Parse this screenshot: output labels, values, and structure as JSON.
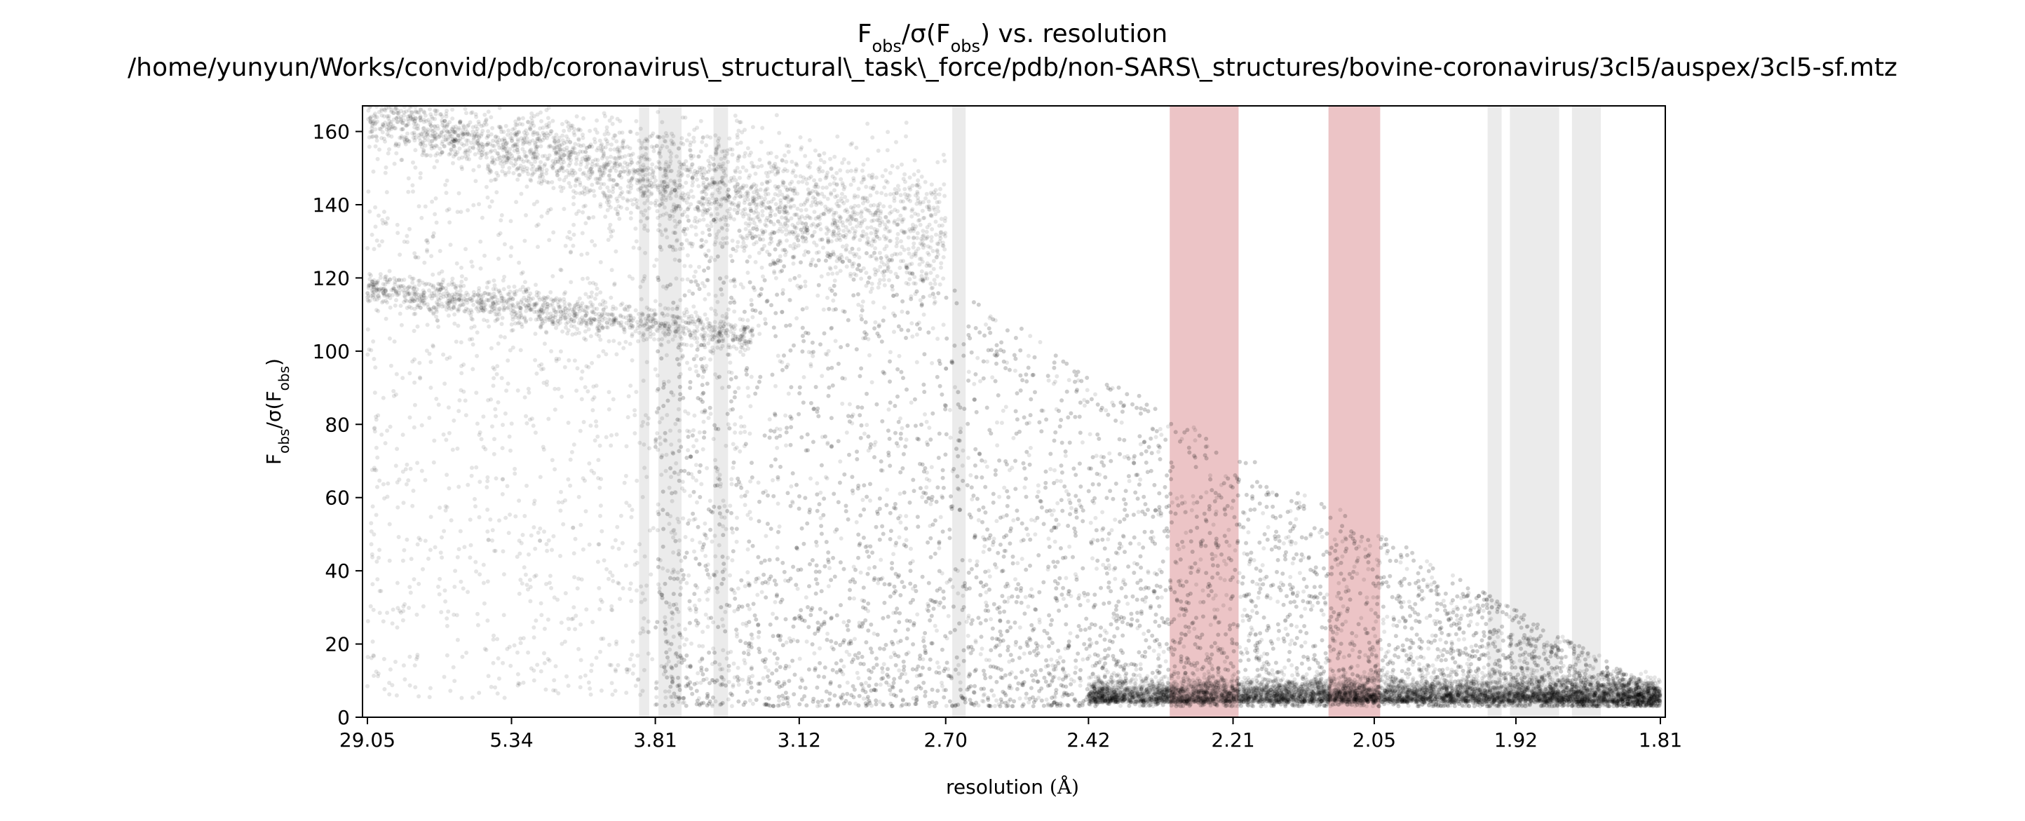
{
  "chart_data": {
    "type": "scatter",
    "title": {
      "line1": {
        "main": "F",
        "main_sub": "obs",
        "mid": "/σ(F",
        "mid_sub": "obs",
        "end": ") vs. resolution"
      },
      "line2": "/home/yunyun/Works/convid/pdb/coronavirus\\_structural\\_task\\_force/pdb/non-SARS\\_structures/bovine-coronavirus/3cl5/auspex/3cl5-sf.mtz"
    },
    "xlabel": {
      "text": "resolution ",
      "unit": "(Å)"
    },
    "ylabel": {
      "main": "F",
      "main_sub": "obs",
      "mid": "/σ(F",
      "mid_sub": "obs",
      "end": ")"
    },
    "x_scale": "inverse-square resolution (1/d²)",
    "x_ticks": [
      "29.05",
      "5.34",
      "3.81",
      "3.12",
      "2.70",
      "2.42",
      "2.21",
      "2.05",
      "1.92",
      "1.81"
    ],
    "ylim": [
      0,
      167
    ],
    "y_ticks": [
      0,
      20,
      40,
      60,
      80,
      100,
      120,
      140,
      160
    ],
    "grid": false,
    "point_color": "#000000",
    "point_alpha": 0.1,
    "ice_ring_bands": {
      "color": "#d3d3d3",
      "ranges_resolution": [
        [
          3.92,
          3.85
        ],
        [
          3.79,
          3.65
        ],
        [
          3.48,
          3.41
        ],
        [
          2.685,
          2.655
        ],
        [
          1.944,
          1.932
        ],
        [
          1.925,
          1.885
        ],
        [
          1.875,
          1.853
        ]
      ]
    },
    "flagged_bands": {
      "color": "#d98a8d",
      "ranges_resolution": [
        [
          2.295,
          2.203
        ],
        [
          2.098,
          2.044
        ]
      ]
    },
    "density_model": [
      {
        "name": "upper-band",
        "x_from": 29.05,
        "x_to": 2.7,
        "y_from": 164,
        "y_to": 130
      },
      {
        "name": "lower-band",
        "x_from": 29.05,
        "x_to": 3.3,
        "y_from": 117,
        "y_to": 104
      },
      {
        "name": "main-cloud",
        "x_from": 3.81,
        "x_to": 1.81,
        "y_from": 140,
        "y_to": 4
      },
      {
        "name": "floor",
        "x_from": 2.42,
        "x_to": 1.81,
        "y_from": 4,
        "y_to": 3
      }
    ]
  }
}
